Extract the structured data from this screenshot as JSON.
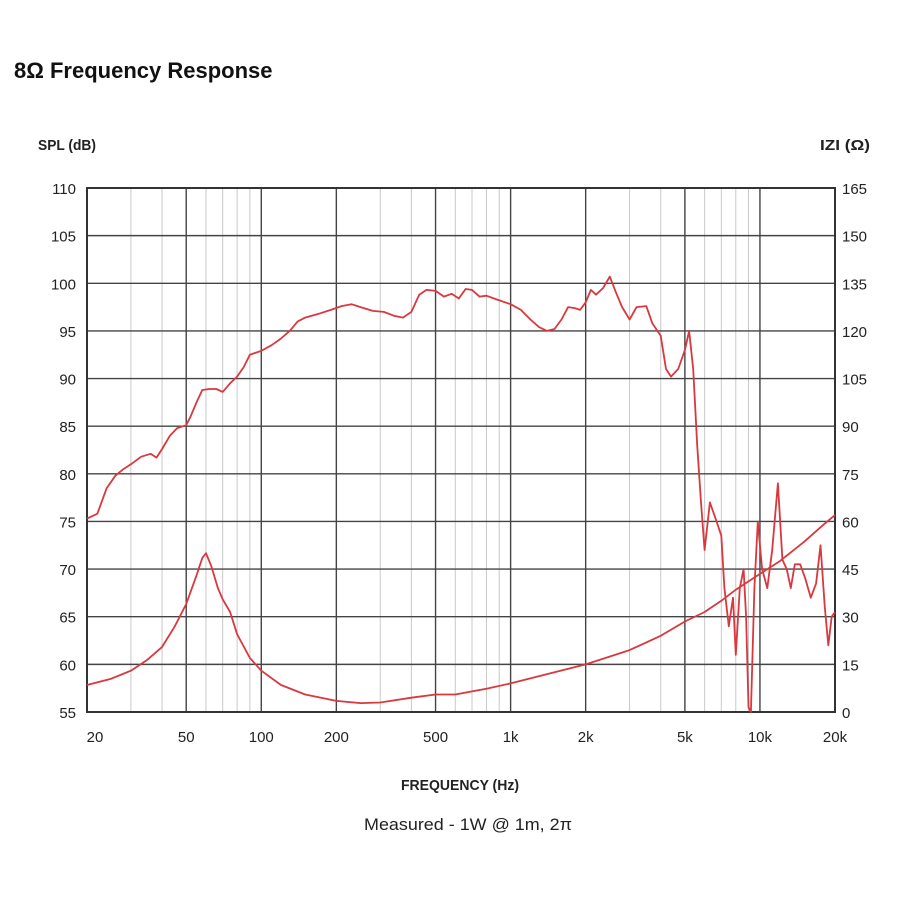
{
  "title": "8Ω Frequency Response",
  "chart_data": {
    "type": "line",
    "title": "8Ω Frequency Response",
    "xlabel": "FREQUENCY (Hz)",
    "ylabel": "SPL (dB)",
    "y2label": "IZI (Ω)",
    "note": "Measured - 1W @ 1m, 2π",
    "xscale": "log",
    "xlim": [
      20,
      20000
    ],
    "ylim": [
      55,
      110
    ],
    "y2lim": [
      0,
      165
    ],
    "grid": true,
    "x_ticks": [
      {
        "value": 20,
        "label": "20"
      },
      {
        "value": 50,
        "label": "50"
      },
      {
        "value": 100,
        "label": "100"
      },
      {
        "value": 200,
        "label": "200"
      },
      {
        "value": 500,
        "label": "500"
      },
      {
        "value": 1000,
        "label": "1k"
      },
      {
        "value": 2000,
        "label": "2k"
      },
      {
        "value": 5000,
        "label": "5k"
      },
      {
        "value": 10000,
        "label": "10k"
      },
      {
        "value": 20000,
        "label": "20k"
      }
    ],
    "y_ticks": [
      110,
      105,
      100,
      95,
      90,
      85,
      80,
      75,
      70,
      65,
      60,
      55
    ],
    "y2_ticks": [
      165,
      150,
      135,
      120,
      105,
      90,
      75,
      60,
      45,
      30,
      15,
      0
    ],
    "color": "#d9383e",
    "series": [
      {
        "axis": "left",
        "points": [
          [
            20,
            75.3
          ],
          [
            22,
            75.8
          ],
          [
            24,
            78.5
          ],
          [
            26,
            79.8
          ],
          [
            28,
            80.5
          ],
          [
            30,
            81.0
          ],
          [
            33,
            81.8
          ],
          [
            36,
            82.1
          ],
          [
            38,
            81.7
          ],
          [
            40,
            82.6
          ],
          [
            43,
            84.0
          ],
          [
            46,
            84.8
          ],
          [
            50,
            85.1
          ],
          [
            52,
            86.0
          ],
          [
            55,
            87.5
          ],
          [
            58,
            88.8
          ],
          [
            62,
            88.9
          ],
          [
            66,
            88.9
          ],
          [
            70,
            88.6
          ],
          [
            75,
            89.5
          ],
          [
            80,
            90.2
          ],
          [
            85,
            91.2
          ],
          [
            90,
            92.5
          ],
          [
            100,
            92.9
          ],
          [
            110,
            93.5
          ],
          [
            120,
            94.2
          ],
          [
            130,
            95.0
          ],
          [
            140,
            96.0
          ],
          [
            150,
            96.4
          ],
          [
            170,
            96.8
          ],
          [
            190,
            97.2
          ],
          [
            210,
            97.6
          ],
          [
            230,
            97.8
          ],
          [
            250,
            97.5
          ],
          [
            280,
            97.1
          ],
          [
            310,
            97.0
          ],
          [
            340,
            96.6
          ],
          [
            370,
            96.4
          ],
          [
            400,
            97.0
          ],
          [
            430,
            98.8
          ],
          [
            460,
            99.3
          ],
          [
            500,
            99.2
          ],
          [
            540,
            98.6
          ],
          [
            580,
            98.9
          ],
          [
            620,
            98.4
          ],
          [
            660,
            99.4
          ],
          [
            700,
            99.3
          ],
          [
            750,
            98.6
          ],
          [
            800,
            98.7
          ],
          [
            880,
            98.3
          ],
          [
            950,
            98.0
          ],
          [
            1000,
            97.8
          ],
          [
            1100,
            97.2
          ],
          [
            1200,
            96.2
          ],
          [
            1300,
            95.4
          ],
          [
            1400,
            95.0
          ],
          [
            1500,
            95.2
          ],
          [
            1600,
            96.2
          ],
          [
            1700,
            97.5
          ],
          [
            1800,
            97.4
          ],
          [
            1900,
            97.2
          ],
          [
            2000,
            98.0
          ],
          [
            2100,
            99.3
          ],
          [
            2200,
            98.8
          ],
          [
            2350,
            99.5
          ],
          [
            2500,
            100.7
          ],
          [
            2650,
            99.0
          ],
          [
            2800,
            97.5
          ],
          [
            3000,
            96.2
          ],
          [
            3200,
            97.5
          ],
          [
            3500,
            97.6
          ],
          [
            3700,
            95.8
          ],
          [
            4000,
            94.5
          ],
          [
            4200,
            91.0
          ],
          [
            4400,
            90.2
          ],
          [
            4700,
            91.0
          ],
          [
            5000,
            93.0
          ],
          [
            5200,
            95.0
          ],
          [
            5400,
            91.0
          ],
          [
            5600,
            83.0
          ],
          [
            5800,
            77.0
          ],
          [
            6000,
            72.0
          ],
          [
            6300,
            77.0
          ],
          [
            6700,
            75.0
          ],
          [
            7000,
            73.5
          ],
          [
            7200,
            68.0
          ],
          [
            7500,
            64.0
          ],
          [
            7800,
            67.0
          ],
          [
            8000,
            61.0
          ],
          [
            8300,
            68.0
          ],
          [
            8600,
            70.0
          ],
          [
            8800,
            65.0
          ],
          [
            9000,
            55.5
          ],
          [
            9200,
            55.0
          ],
          [
            9500,
            68.0
          ],
          [
            9800,
            75.0
          ],
          [
            10200,
            70.0
          ],
          [
            10700,
            68.0
          ],
          [
            11200,
            72.0
          ],
          [
            11800,
            79.0
          ],
          [
            12300,
            71.0
          ],
          [
            12800,
            70.0
          ],
          [
            13300,
            68.0
          ],
          [
            13800,
            70.5
          ],
          [
            14500,
            70.5
          ],
          [
            15200,
            69.0
          ],
          [
            16000,
            67.0
          ],
          [
            16800,
            68.5
          ],
          [
            17500,
            72.5
          ],
          [
            18200,
            66.0
          ],
          [
            18800,
            62.0
          ],
          [
            19400,
            65.0
          ],
          [
            20000,
            65.5
          ]
        ]
      },
      {
        "axis": "right",
        "points": [
          [
            20,
            8.5
          ],
          [
            25,
            10.5
          ],
          [
            30,
            13.0
          ],
          [
            35,
            16.5
          ],
          [
            40,
            20.5
          ],
          [
            45,
            27.0
          ],
          [
            50,
            34.0
          ],
          [
            55,
            43.0
          ],
          [
            58,
            48.5
          ],
          [
            60,
            50.0
          ],
          [
            63,
            46.0
          ],
          [
            67,
            39.0
          ],
          [
            70,
            35.5
          ],
          [
            75,
            31.5
          ],
          [
            80,
            24.5
          ],
          [
            90,
            17.0
          ],
          [
            100,
            13.0
          ],
          [
            120,
            8.5
          ],
          [
            150,
            5.5
          ],
          [
            200,
            3.5
          ],
          [
            250,
            2.8
          ],
          [
            300,
            3.0
          ],
          [
            400,
            4.5
          ],
          [
            500,
            5.5
          ],
          [
            600,
            5.5
          ],
          [
            700,
            6.5
          ],
          [
            800,
            7.3
          ],
          [
            1000,
            9.0
          ],
          [
            1500,
            12.5
          ],
          [
            2000,
            15.0
          ],
          [
            3000,
            19.5
          ],
          [
            4000,
            24.0
          ],
          [
            5000,
            28.5
          ],
          [
            6000,
            31.5
          ],
          [
            7000,
            35.0
          ],
          [
            8000,
            38.5
          ],
          [
            10000,
            43.5
          ],
          [
            12000,
            47.5
          ],
          [
            15000,
            53.5
          ],
          [
            18000,
            59.0
          ],
          [
            20000,
            62.0
          ]
        ]
      }
    ]
  }
}
